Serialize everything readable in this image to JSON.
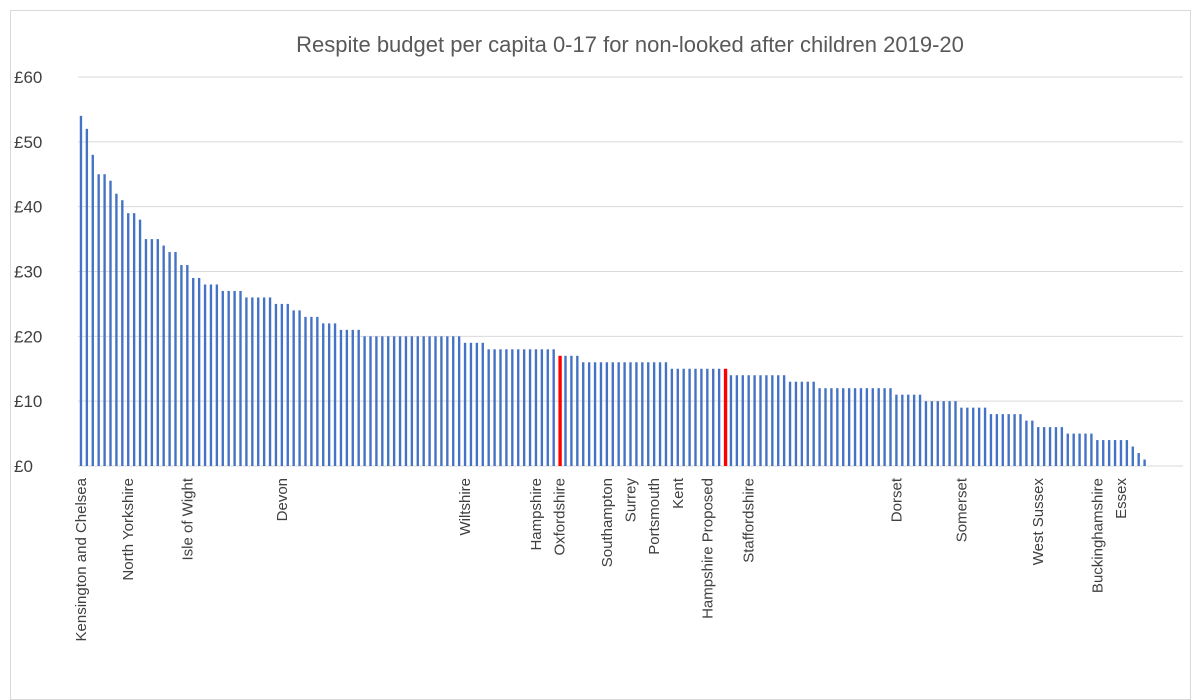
{
  "chart_data": {
    "type": "bar",
    "title": "Respite budget per capita 0-17 for non-looked after children 2019-20",
    "xlabel": "",
    "ylabel": "",
    "ylim": [
      0,
      60
    ],
    "yticks": [
      "£0",
      "£10",
      "£20",
      "£30",
      "£40",
      "£50",
      "£60"
    ],
    "grid": true,
    "legend": "none",
    "colors": {
      "default": "#4472c4",
      "highlight": "#ff0000",
      "grid": "#d9d9d9"
    },
    "highlight_indices": [
      81,
      109
    ],
    "values": [
      54,
      52,
      48,
      45,
      45,
      44,
      42,
      41,
      39,
      39,
      38,
      35,
      35,
      35,
      34,
      33,
      33,
      31,
      31,
      29,
      29,
      28,
      28,
      28,
      27,
      27,
      27,
      27,
      26,
      26,
      26,
      26,
      26,
      25,
      25,
      25,
      24,
      24,
      23,
      23,
      23,
      22,
      22,
      22,
      21,
      21,
      21,
      21,
      20,
      20,
      20,
      20,
      20,
      20,
      20,
      20,
      20,
      20,
      20,
      20,
      20,
      20,
      20,
      20,
      20,
      19,
      19,
      19,
      19,
      18,
      18,
      18,
      18,
      18,
      18,
      18,
      18,
      18,
      18,
      18,
      18,
      17,
      17,
      17,
      17,
      16,
      16,
      16,
      16,
      16,
      16,
      16,
      16,
      16,
      16,
      16,
      16,
      16,
      16,
      16,
      15,
      15,
      15,
      15,
      15,
      15,
      15,
      15,
      15,
      15,
      14,
      14,
      14,
      14,
      14,
      14,
      14,
      14,
      14,
      14,
      13,
      13,
      13,
      13,
      13,
      12,
      12,
      12,
      12,
      12,
      12,
      12,
      12,
      12,
      12,
      12,
      12,
      12,
      11,
      11,
      11,
      11,
      11,
      10,
      10,
      10,
      10,
      10,
      10,
      9,
      9,
      9,
      9,
      9,
      8,
      8,
      8,
      8,
      8,
      8,
      7,
      7,
      6,
      6,
      6,
      6,
      6,
      5,
      5,
      5,
      5,
      5,
      4,
      4,
      4,
      4,
      4,
      4,
      3,
      2,
      1,
      0,
      0,
      0,
      0,
      0,
      0
    ],
    "labeled_categories": [
      {
        "index": 0,
        "label": "Kensington and Chelsea"
      },
      {
        "index": 8,
        "label": "North Yorkshire"
      },
      {
        "index": 18,
        "label": "Isle of Wight"
      },
      {
        "index": 34,
        "label": "Devon"
      },
      {
        "index": 65,
        "label": "Wiltshire"
      },
      {
        "index": 77,
        "label": "Hampshire"
      },
      {
        "index": 81,
        "label": "Oxfordshire"
      },
      {
        "index": 89,
        "label": "Southampton"
      },
      {
        "index": 93,
        "label": "Surrey"
      },
      {
        "index": 97,
        "label": "Portsmouth"
      },
      {
        "index": 101,
        "label": "Kent"
      },
      {
        "index": 106,
        "label": "Hampshire Proposed"
      },
      {
        "index": 113,
        "label": "Staffordshire"
      },
      {
        "index": 138,
        "label": "Dorset"
      },
      {
        "index": 149,
        "label": "Somerset"
      },
      {
        "index": 162,
        "label": "West Sussex"
      },
      {
        "index": 172,
        "label": "Buckinghamshire"
      },
      {
        "index": 176,
        "label": "Essex"
      }
    ]
  }
}
